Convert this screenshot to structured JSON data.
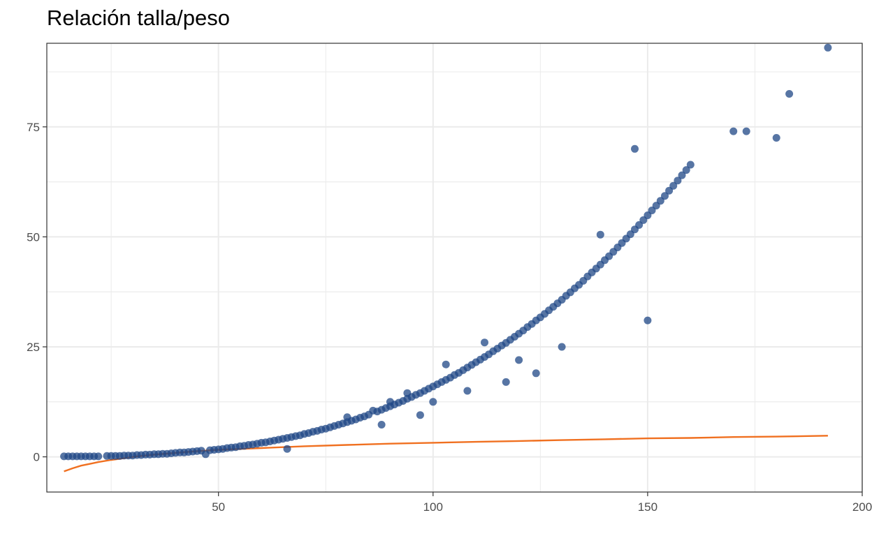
{
  "chart_data": {
    "type": "scatter",
    "title": "Relación talla/peso",
    "xlabel": "",
    "ylabel": "",
    "xlim": [
      10,
      200
    ],
    "ylim": [
      -8,
      94
    ],
    "x_ticks": [
      50,
      100,
      150,
      200
    ],
    "x_tick_labels": [
      "50",
      "100",
      "150",
      "200"
    ],
    "y_ticks": [
      0,
      25,
      50,
      75
    ],
    "y_tick_labels": [
      "0",
      "25",
      "50",
      "75"
    ],
    "grid": true,
    "legend": "none",
    "colors": {
      "points": "#1f4785",
      "line": "#f07020",
      "grid": "#ebebeb",
      "frame": "#333333"
    },
    "series": [
      {
        "type": "scatter",
        "points": [
          [
            14,
            0.1
          ],
          [
            15,
            0.1
          ],
          [
            16,
            0.1
          ],
          [
            17,
            0.1
          ],
          [
            18,
            0.1
          ],
          [
            19,
            0.1
          ],
          [
            20,
            0.1
          ],
          [
            21,
            0.1
          ],
          [
            22,
            0.1
          ],
          [
            24,
            0.2
          ],
          [
            25,
            0.2
          ],
          [
            26,
            0.2
          ],
          [
            27,
            0.2
          ],
          [
            28,
            0.3
          ],
          [
            29,
            0.3
          ],
          [
            30,
            0.3
          ],
          [
            31,
            0.4
          ],
          [
            32,
            0.4
          ],
          [
            33,
            0.5
          ],
          [
            34,
            0.5
          ],
          [
            35,
            0.6
          ],
          [
            36,
            0.6
          ],
          [
            37,
            0.7
          ],
          [
            38,
            0.7
          ],
          [
            39,
            0.8
          ],
          [
            40,
            0.9
          ],
          [
            41,
            1.0
          ],
          [
            42,
            1.0
          ],
          [
            43,
            1.1
          ],
          [
            44,
            1.2
          ],
          [
            45,
            1.3
          ],
          [
            46,
            1.4
          ],
          [
            47,
            0.6
          ],
          [
            48,
            1.5
          ],
          [
            49,
            1.6
          ],
          [
            50,
            1.7
          ],
          [
            51,
            1.8
          ],
          [
            52,
            2.0
          ],
          [
            53,
            2.1
          ],
          [
            54,
            2.2
          ],
          [
            55,
            2.4
          ],
          [
            56,
            2.5
          ],
          [
            57,
            2.7
          ],
          [
            58,
            2.8
          ],
          [
            59,
            3.0
          ],
          [
            60,
            3.2
          ],
          [
            61,
            3.3
          ],
          [
            62,
            3.5
          ],
          [
            63,
            3.7
          ],
          [
            64,
            3.9
          ],
          [
            65,
            4.1
          ],
          [
            66,
            1.8
          ],
          [
            66,
            4.3
          ],
          [
            67,
            4.5
          ],
          [
            68,
            4.7
          ],
          [
            69,
            4.9
          ],
          [
            70,
            5.2
          ],
          [
            71,
            5.4
          ],
          [
            72,
            5.7
          ],
          [
            73,
            5.9
          ],
          [
            74,
            6.2
          ],
          [
            75,
            6.4
          ],
          [
            76,
            6.7
          ],
          [
            77,
            7.0
          ],
          [
            78,
            7.3
          ],
          [
            79,
            7.6
          ],
          [
            80,
            7.9
          ],
          [
            80,
            9.0
          ],
          [
            81,
            8.2
          ],
          [
            82,
            8.5
          ],
          [
            83,
            8.9
          ],
          [
            84,
            9.2
          ],
          [
            85,
            9.6
          ],
          [
            86,
            10.5
          ],
          [
            87,
            10.3
          ],
          [
            88,
            7.3
          ],
          [
            88,
            10.7
          ],
          [
            89,
            11.1
          ],
          [
            90,
            11.5
          ],
          [
            90,
            12.5
          ],
          [
            91,
            11.9
          ],
          [
            92,
            12.3
          ],
          [
            93,
            12.7
          ],
          [
            94,
            13.2
          ],
          [
            94,
            14.5
          ],
          [
            95,
            13.6
          ],
          [
            96,
            14.1
          ],
          [
            97,
            9.5
          ],
          [
            97,
            14.5
          ],
          [
            98,
            15.0
          ],
          [
            99,
            15.5
          ],
          [
            100,
            16.0
          ],
          [
            100,
            12.5
          ],
          [
            101,
            16.5
          ],
          [
            102,
            17.0
          ],
          [
            103,
            21.0
          ],
          [
            103,
            17.5
          ],
          [
            104,
            18.0
          ],
          [
            105,
            18.6
          ],
          [
            106,
            19.1
          ],
          [
            107,
            19.7
          ],
          [
            108,
            15.0
          ],
          [
            108,
            20.3
          ],
          [
            109,
            20.9
          ],
          [
            110,
            21.5
          ],
          [
            111,
            22.1
          ],
          [
            112,
            26.0
          ],
          [
            112,
            22.7
          ],
          [
            113,
            23.3
          ],
          [
            114,
            24.0
          ],
          [
            115,
            24.6
          ],
          [
            116,
            25.3
          ],
          [
            117,
            17.0
          ],
          [
            117,
            25.9
          ],
          [
            118,
            26.6
          ],
          [
            119,
            27.3
          ],
          [
            120,
            28.0
          ],
          [
            120,
            22.0
          ],
          [
            121,
            28.7
          ],
          [
            122,
            29.5
          ],
          [
            123,
            30.2
          ],
          [
            124,
            31.0
          ],
          [
            124,
            19.0
          ],
          [
            125,
            31.7
          ],
          [
            126,
            32.5
          ],
          [
            127,
            33.3
          ],
          [
            128,
            34.1
          ],
          [
            129,
            34.9
          ],
          [
            130,
            35.7
          ],
          [
            130,
            25.0
          ],
          [
            131,
            36.6
          ],
          [
            132,
            37.4
          ],
          [
            133,
            38.3
          ],
          [
            134,
            39.1
          ],
          [
            135,
            40.0
          ],
          [
            136,
            41.0
          ],
          [
            137,
            41.9
          ],
          [
            138,
            42.8
          ],
          [
            139,
            50.5
          ],
          [
            139,
            43.7
          ],
          [
            140,
            44.7
          ],
          [
            141,
            45.6
          ],
          [
            142,
            46.6
          ],
          [
            143,
            47.6
          ],
          [
            144,
            48.6
          ],
          [
            145,
            49.6
          ],
          [
            146,
            50.6
          ],
          [
            147,
            70.0
          ],
          [
            147,
            51.7
          ],
          [
            148,
            52.7
          ],
          [
            149,
            53.8
          ],
          [
            150,
            31.0
          ],
          [
            150,
            54.9
          ],
          [
            151,
            56.0
          ],
          [
            152,
            57.1
          ],
          [
            153,
            58.2
          ],
          [
            154,
            59.3
          ],
          [
            155,
            60.5
          ],
          [
            156,
            61.6
          ],
          [
            157,
            62.8
          ],
          [
            158,
            64.0
          ],
          [
            159,
            65.2
          ],
          [
            160,
            66.4
          ],
          [
            170,
            74.0
          ],
          [
            173,
            74.0
          ],
          [
            180,
            72.5
          ],
          [
            183,
            82.5
          ],
          [
            192,
            93.0
          ]
        ]
      },
      {
        "type": "line",
        "points": [
          [
            14,
            -3.3
          ],
          [
            16,
            -2.6
          ],
          [
            18,
            -2.0
          ],
          [
            20,
            -1.6
          ],
          [
            22,
            -1.2
          ],
          [
            25,
            -0.7
          ],
          [
            28,
            -0.3
          ],
          [
            31,
            0.1
          ],
          [
            35,
            0.5
          ],
          [
            40,
            0.9
          ],
          [
            45,
            1.3
          ],
          [
            50,
            1.6
          ],
          [
            60,
            2.0
          ],
          [
            70,
            2.4
          ],
          [
            80,
            2.7
          ],
          [
            90,
            3.0
          ],
          [
            100,
            3.2
          ],
          [
            110,
            3.4
          ],
          [
            120,
            3.6
          ],
          [
            130,
            3.8
          ],
          [
            140,
            4.0
          ],
          [
            150,
            4.2
          ],
          [
            160,
            4.3
          ],
          [
            170,
            4.5
          ],
          [
            180,
            4.6
          ],
          [
            192,
            4.8
          ]
        ]
      }
    ]
  }
}
